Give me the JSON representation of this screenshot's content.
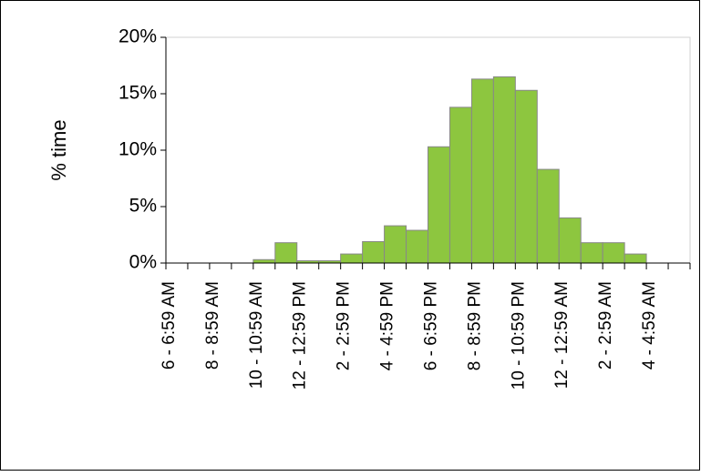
{
  "chart_data": {
    "type": "bar",
    "y_label": "% time",
    "categories": [
      "6 - 6:59 AM",
      null,
      "8 - 8:59 AM",
      null,
      "10 - 10:59 AM",
      null,
      "12 - 12:59 PM",
      null,
      "2 - 2:59 PM",
      null,
      "4 - 4:59 PM",
      null,
      "6 - 6:59 PM",
      null,
      "8 - 8:59 PM",
      null,
      "10 - 10:59 PM",
      null,
      "12 - 12:59 AM",
      null,
      "2 - 2:59 AM",
      null,
      "4 - 4:59 AM",
      null
    ],
    "values": [
      0,
      0,
      0,
      0,
      0.3,
      1.8,
      0.2,
      0.2,
      0.8,
      1.9,
      3.3,
      2.9,
      10.3,
      13.8,
      16.3,
      16.5,
      15.3,
      8.3,
      4.0,
      1.8,
      1.8,
      0.8,
      0,
      0
    ],
    "color": "#8dc63f",
    "ylim": [
      0,
      20
    ],
    "yticks": [
      {
        "value": 0,
        "label": "0%"
      },
      {
        "value": 5,
        "label": "5%"
      },
      {
        "value": 10,
        "label": "10%"
      },
      {
        "value": 15,
        "label": "15%"
      },
      {
        "value": 20,
        "label": "20%"
      }
    ],
    "grid": false
  }
}
